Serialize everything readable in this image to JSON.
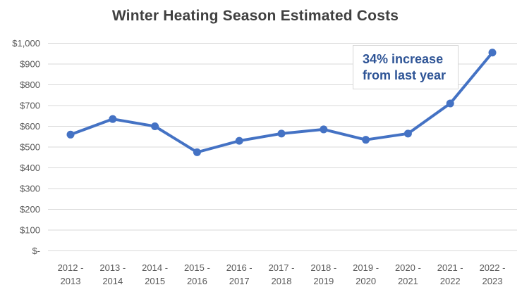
{
  "title": "Winter Heating Season Estimated Costs",
  "annotation": {
    "line1": "34% increase",
    "line2": "from last year"
  },
  "colors": {
    "line": "#4472C4",
    "marker": "#4472C4",
    "grid": "#D9D9D9",
    "title_text": "#404040",
    "axis_text": "#595959",
    "annotation_text": "#2E5496",
    "annotation_border": "#D6D6D6",
    "background": "#FFFFFF"
  },
  "chart_data": {
    "type": "line",
    "title": "Winter Heating Season Estimated Costs",
    "categories": [
      "2012 - 2013",
      "2013 - 2014",
      "2014 - 2015",
      "2015 - 2016",
      "2016 - 2017",
      "2017 - 2018",
      "2018 - 2019",
      "2019 - 2020",
      "2020 - 2021",
      "2021 - 2022",
      "2022 - 2023"
    ],
    "values": [
      560,
      635,
      600,
      475,
      530,
      565,
      585,
      535,
      565,
      710,
      955
    ],
    "xlabel": "",
    "ylabel": "",
    "ylim": [
      0,
      1000
    ],
    "ytick_interval": 100,
    "ytick_labels": [
      "$-",
      "$100",
      "$200",
      "$300",
      "$400",
      "$500",
      "$600",
      "$700",
      "$800",
      "$900",
      "$1,000"
    ],
    "grid": true,
    "legend": false,
    "annotation": "34% increase from last year",
    "annotation_target": "2022 - 2023"
  }
}
